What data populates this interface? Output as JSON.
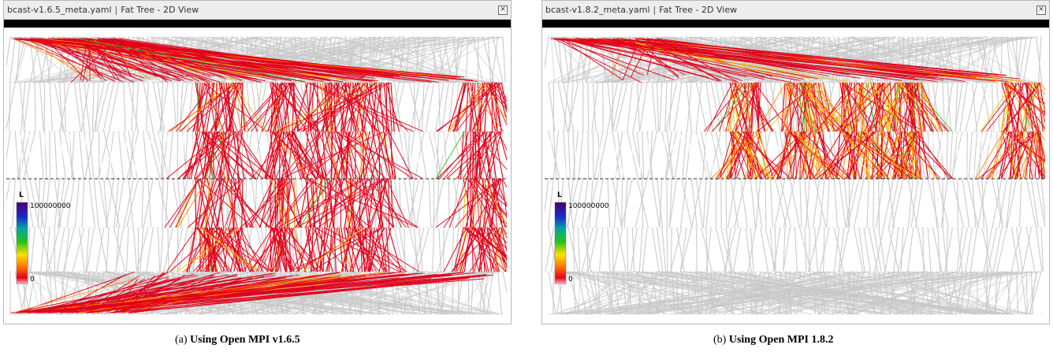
{
  "panels": [
    {
      "id": "a",
      "file": "bcast-v1.6.5_meta.yaml",
      "separator": "|",
      "view": "Fat Tree - 2D View",
      "legend": {
        "top_symbol": "L",
        "max": "100000000",
        "min": "0"
      },
      "caption_prefix": "(a)",
      "caption_text": "Using Open MPI v1.6.5"
    },
    {
      "id": "b",
      "file": "bcast-v1.8.2_meta.yaml",
      "separator": "|",
      "view": "Fat Tree - 2D View",
      "legend": {
        "top_symbol": "L",
        "max": "100000000",
        "min": "0"
      },
      "caption_prefix": "(b)",
      "caption_text": "Using Open MPI 1.8.2"
    }
  ],
  "icons": {
    "close": "close-icon"
  },
  "colors": {
    "link_idle": "#c8c8c8",
    "link_hot": "#e0001a",
    "link_warm": "#ff8c00",
    "link_mid": "#f2d100",
    "link_green": "#33c21a",
    "link_blue": "#1a2ccc",
    "link_purple": "#5a007a"
  }
}
